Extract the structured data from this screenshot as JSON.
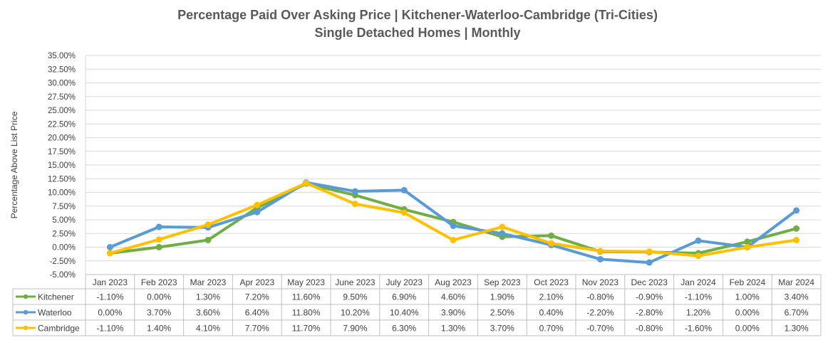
{
  "chart_data": {
    "type": "line",
    "title": "Percentage Paid Over Asking Price | Kitchener-Waterloo-Cambridge (Tri-Cities)",
    "subtitle": "Single Detached Homes | Monthly",
    "ylabel": "Percentage Above List Price",
    "xlabel": "",
    "ylim": [
      -5,
      35
    ],
    "ytick_step": 2.5,
    "yticks": [
      "35.00%",
      "32.50%",
      "30.00%",
      "27.50%",
      "25.00%",
      "22.50%",
      "20.00%",
      "17.50%",
      "15.00%",
      "12.50%",
      "10.00%",
      "7.50%",
      "5.00%",
      "2.50%",
      "0.00%",
      "-2.50%",
      "-5.00%"
    ],
    "grid": true,
    "legend": "data-table",
    "categories": [
      "Jan 2023",
      "Feb 2023",
      "Mar 2023",
      "Apr 2023",
      "May 2023",
      "June 2023",
      "July 2023",
      "Aug 2023",
      "Sep 2023",
      "Oct 2023",
      "Nov 2023",
      "Dec 2023",
      "Jan 2024",
      "Feb 2024",
      "Mar 2024"
    ],
    "series": [
      {
        "name": "Kitchener",
        "color": "#70ad47",
        "values": [
          -1.1,
          0.0,
          1.3,
          7.2,
          11.6,
          9.5,
          6.9,
          4.6,
          1.9,
          2.1,
          -0.8,
          -0.9,
          -1.1,
          1.0,
          3.4
        ],
        "labels": [
          "-1.10%",
          "0.00%",
          "1.30%",
          "7.20%",
          "11.60%",
          "9.50%",
          "6.90%",
          "4.60%",
          "1.90%",
          "2.10%",
          "-0.80%",
          "-0.90%",
          "-1.10%",
          "1.00%",
          "3.40%"
        ]
      },
      {
        "name": "Waterloo",
        "color": "#5b9bd5",
        "values": [
          0.0,
          3.7,
          3.6,
          6.4,
          11.8,
          10.2,
          10.4,
          3.9,
          2.5,
          0.4,
          -2.2,
          -2.8,
          1.2,
          0.0,
          6.7
        ],
        "labels": [
          "0.00%",
          "3.70%",
          "3.60%",
          "6.40%",
          "11.80%",
          "10.20%",
          "10.40%",
          "3.90%",
          "2.50%",
          "0.40%",
          "-2.20%",
          "-2.80%",
          "1.20%",
          "0.00%",
          "6.70%"
        ]
      },
      {
        "name": "Cambridge",
        "color": "#ffc000",
        "values": [
          -1.1,
          1.4,
          4.1,
          7.7,
          11.7,
          7.9,
          6.3,
          1.3,
          3.7,
          0.7,
          -0.7,
          -0.8,
          -1.6,
          0.0,
          1.3
        ],
        "labels": [
          "-1.10%",
          "1.40%",
          "4.10%",
          "7.70%",
          "11.70%",
          "7.90%",
          "6.30%",
          "1.30%",
          "3.70%",
          "0.70%",
          "-0.70%",
          "-0.80%",
          "-1.60%",
          "0.00%",
          "1.30%"
        ]
      }
    ]
  }
}
